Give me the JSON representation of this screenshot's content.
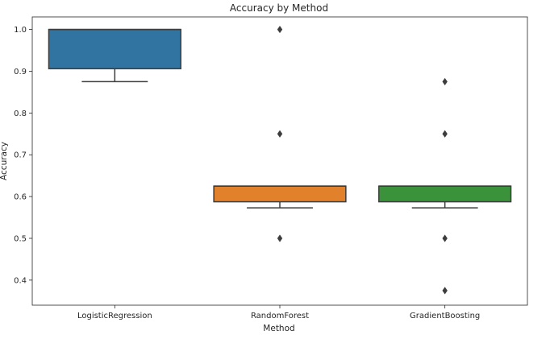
{
  "chart_data": {
    "type": "box",
    "title": "Accuracy by Method",
    "xlabel": "Method",
    "ylabel": "Accuracy",
    "ylim": [
      0.34,
      1.03
    ],
    "yticks": [
      "0.4",
      "0.5",
      "0.6",
      "0.7",
      "0.8",
      "0.9",
      "1.0"
    ],
    "grid": false,
    "categories": [
      "LogisticRegression",
      "RandomForest",
      "GradientBoosting"
    ],
    "boxes": [
      {
        "name": "LogisticRegression",
        "whisker_low": 0.875,
        "q1": 0.906,
        "median": 1.0,
        "q3": 1.0,
        "whisker_high": 1.0,
        "outliers": [],
        "color": "#3274a1"
      },
      {
        "name": "RandomForest",
        "whisker_low": 0.573,
        "q1": 0.5875,
        "median": 0.625,
        "q3": 0.625,
        "whisker_high": 0.625,
        "outliers": [
          1.0,
          0.75,
          0.5
        ],
        "color": "#e1812c"
      },
      {
        "name": "GradientBoosting",
        "whisker_low": 0.573,
        "q1": 0.5875,
        "median": 0.625,
        "q3": 0.625,
        "whisker_high": 0.625,
        "outliers": [
          0.875,
          0.75,
          0.5,
          0.375
        ],
        "color": "#3a923a"
      }
    ]
  }
}
